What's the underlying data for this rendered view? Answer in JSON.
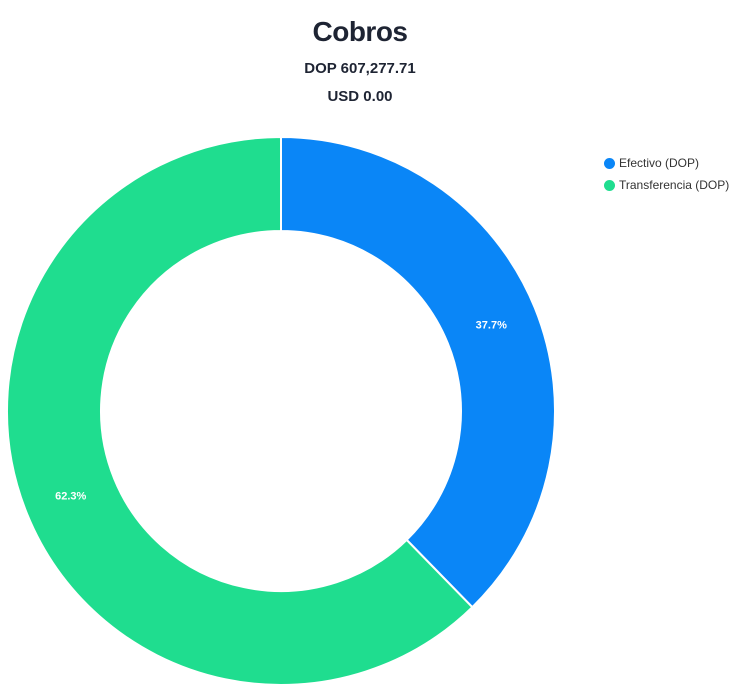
{
  "chart_data": {
    "type": "pie",
    "variant": "donut",
    "title": "Cobros",
    "subtitles": [
      "DOP 607,277.71",
      "USD 0.00"
    ],
    "categories": [
      "Efectivo (DOP)",
      "Transferencia (DOP)"
    ],
    "values": [
      37.7,
      62.3
    ],
    "data_labels": [
      "37.7%",
      "62.3%"
    ],
    "colors": [
      "#0a86f7",
      "#1fdd8f"
    ],
    "legend_position": "top-right"
  }
}
